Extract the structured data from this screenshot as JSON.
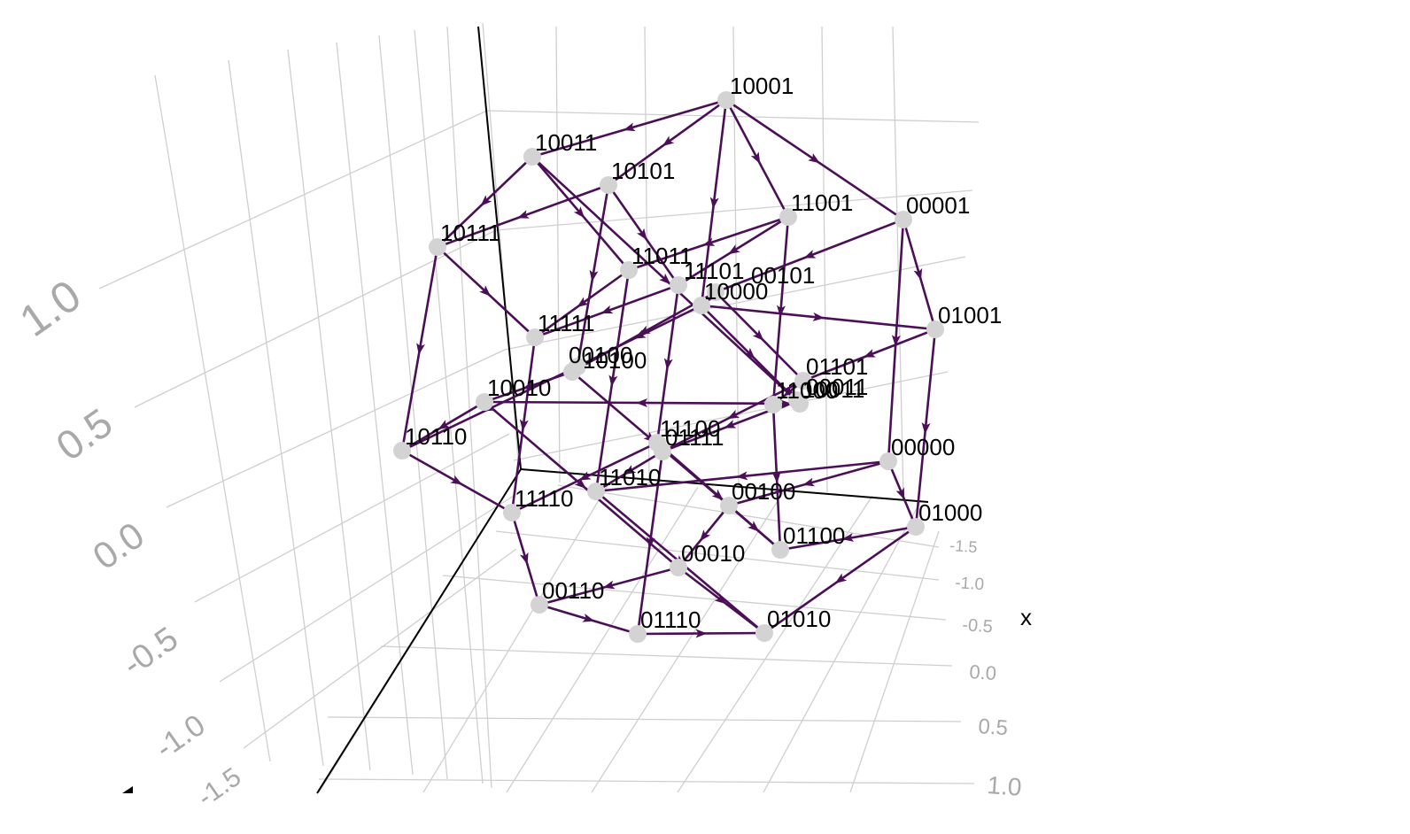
{
  "chart_data": {
    "type": "network",
    "x_axis": {
      "title": "x",
      "ticks": [
        "-1.5",
        "-1.0",
        "-0.5",
        "0.0",
        "0.5",
        "1.0"
      ]
    },
    "z_axis": {
      "ticks": [
        "1.0",
        "0.5",
        "0.0",
        "-0.5",
        "-1.0",
        "-1.5"
      ]
    },
    "colors": {
      "edge": "#4b0f57",
      "node": "#d3d3d3",
      "grid": "#cfcfcf",
      "axis": "#000000",
      "tick": "#a9a9a9"
    },
    "nodes": [
      "10001",
      "10011",
      "10101",
      "10111",
      "11001",
      "00001",
      "11011",
      "11101",
      "00101",
      "10000",
      "01001",
      "11111",
      "00100",
      "10100",
      "01101",
      "11000",
      "10011",
      "10010",
      "10110",
      "11100",
      "01111",
      "00000",
      "11010",
      "00100",
      "11110",
      "01000",
      "01100",
      "00010",
      "00110",
      "01110",
      "01010",
      "00011"
    ],
    "edges": [
      [
        0,
        1
      ],
      [
        0,
        2
      ],
      [
        0,
        4
      ],
      [
        0,
        5
      ],
      [
        0,
        9
      ],
      [
        1,
        3
      ],
      [
        1,
        6
      ],
      [
        1,
        16
      ],
      [
        2,
        3
      ],
      [
        2,
        7
      ],
      [
        2,
        13
      ],
      [
        3,
        11
      ],
      [
        3,
        18
      ],
      [
        4,
        6
      ],
      [
        4,
        7
      ],
      [
        4,
        15
      ],
      [
        5,
        8
      ],
      [
        5,
        10
      ],
      [
        5,
        21
      ],
      [
        6,
        11
      ],
      [
        6,
        22
      ],
      [
        7,
        11
      ],
      [
        7,
        19
      ],
      [
        8,
        9
      ],
      [
        8,
        12
      ],
      [
        8,
        14
      ],
      [
        9,
        10
      ],
      [
        9,
        13
      ],
      [
        9,
        16
      ],
      [
        10,
        14
      ],
      [
        10,
        25
      ],
      [
        11,
        24
      ],
      [
        12,
        13
      ],
      [
        12,
        17
      ],
      [
        12,
        23
      ],
      [
        13,
        18
      ],
      [
        14,
        15
      ],
      [
        14,
        20
      ],
      [
        15,
        16
      ],
      [
        15,
        26
      ],
      [
        16,
        17
      ],
      [
        16,
        31
      ],
      [
        17,
        18
      ],
      [
        17,
        27
      ],
      [
        18,
        24
      ],
      [
        19,
        20
      ],
      [
        19,
        24
      ],
      [
        19,
        26
      ],
      [
        20,
        22
      ],
      [
        20,
        29
      ],
      [
        21,
        22
      ],
      [
        21,
        23
      ],
      [
        21,
        25
      ],
      [
        22,
        30
      ],
      [
        23,
        26
      ],
      [
        23,
        27
      ],
      [
        24,
        28
      ],
      [
        25,
        26
      ],
      [
        25,
        30
      ],
      [
        27,
        28
      ],
      [
        27,
        30
      ],
      [
        28,
        29
      ],
      [
        29,
        30
      ],
      [
        31,
        20
      ]
    ]
  }
}
